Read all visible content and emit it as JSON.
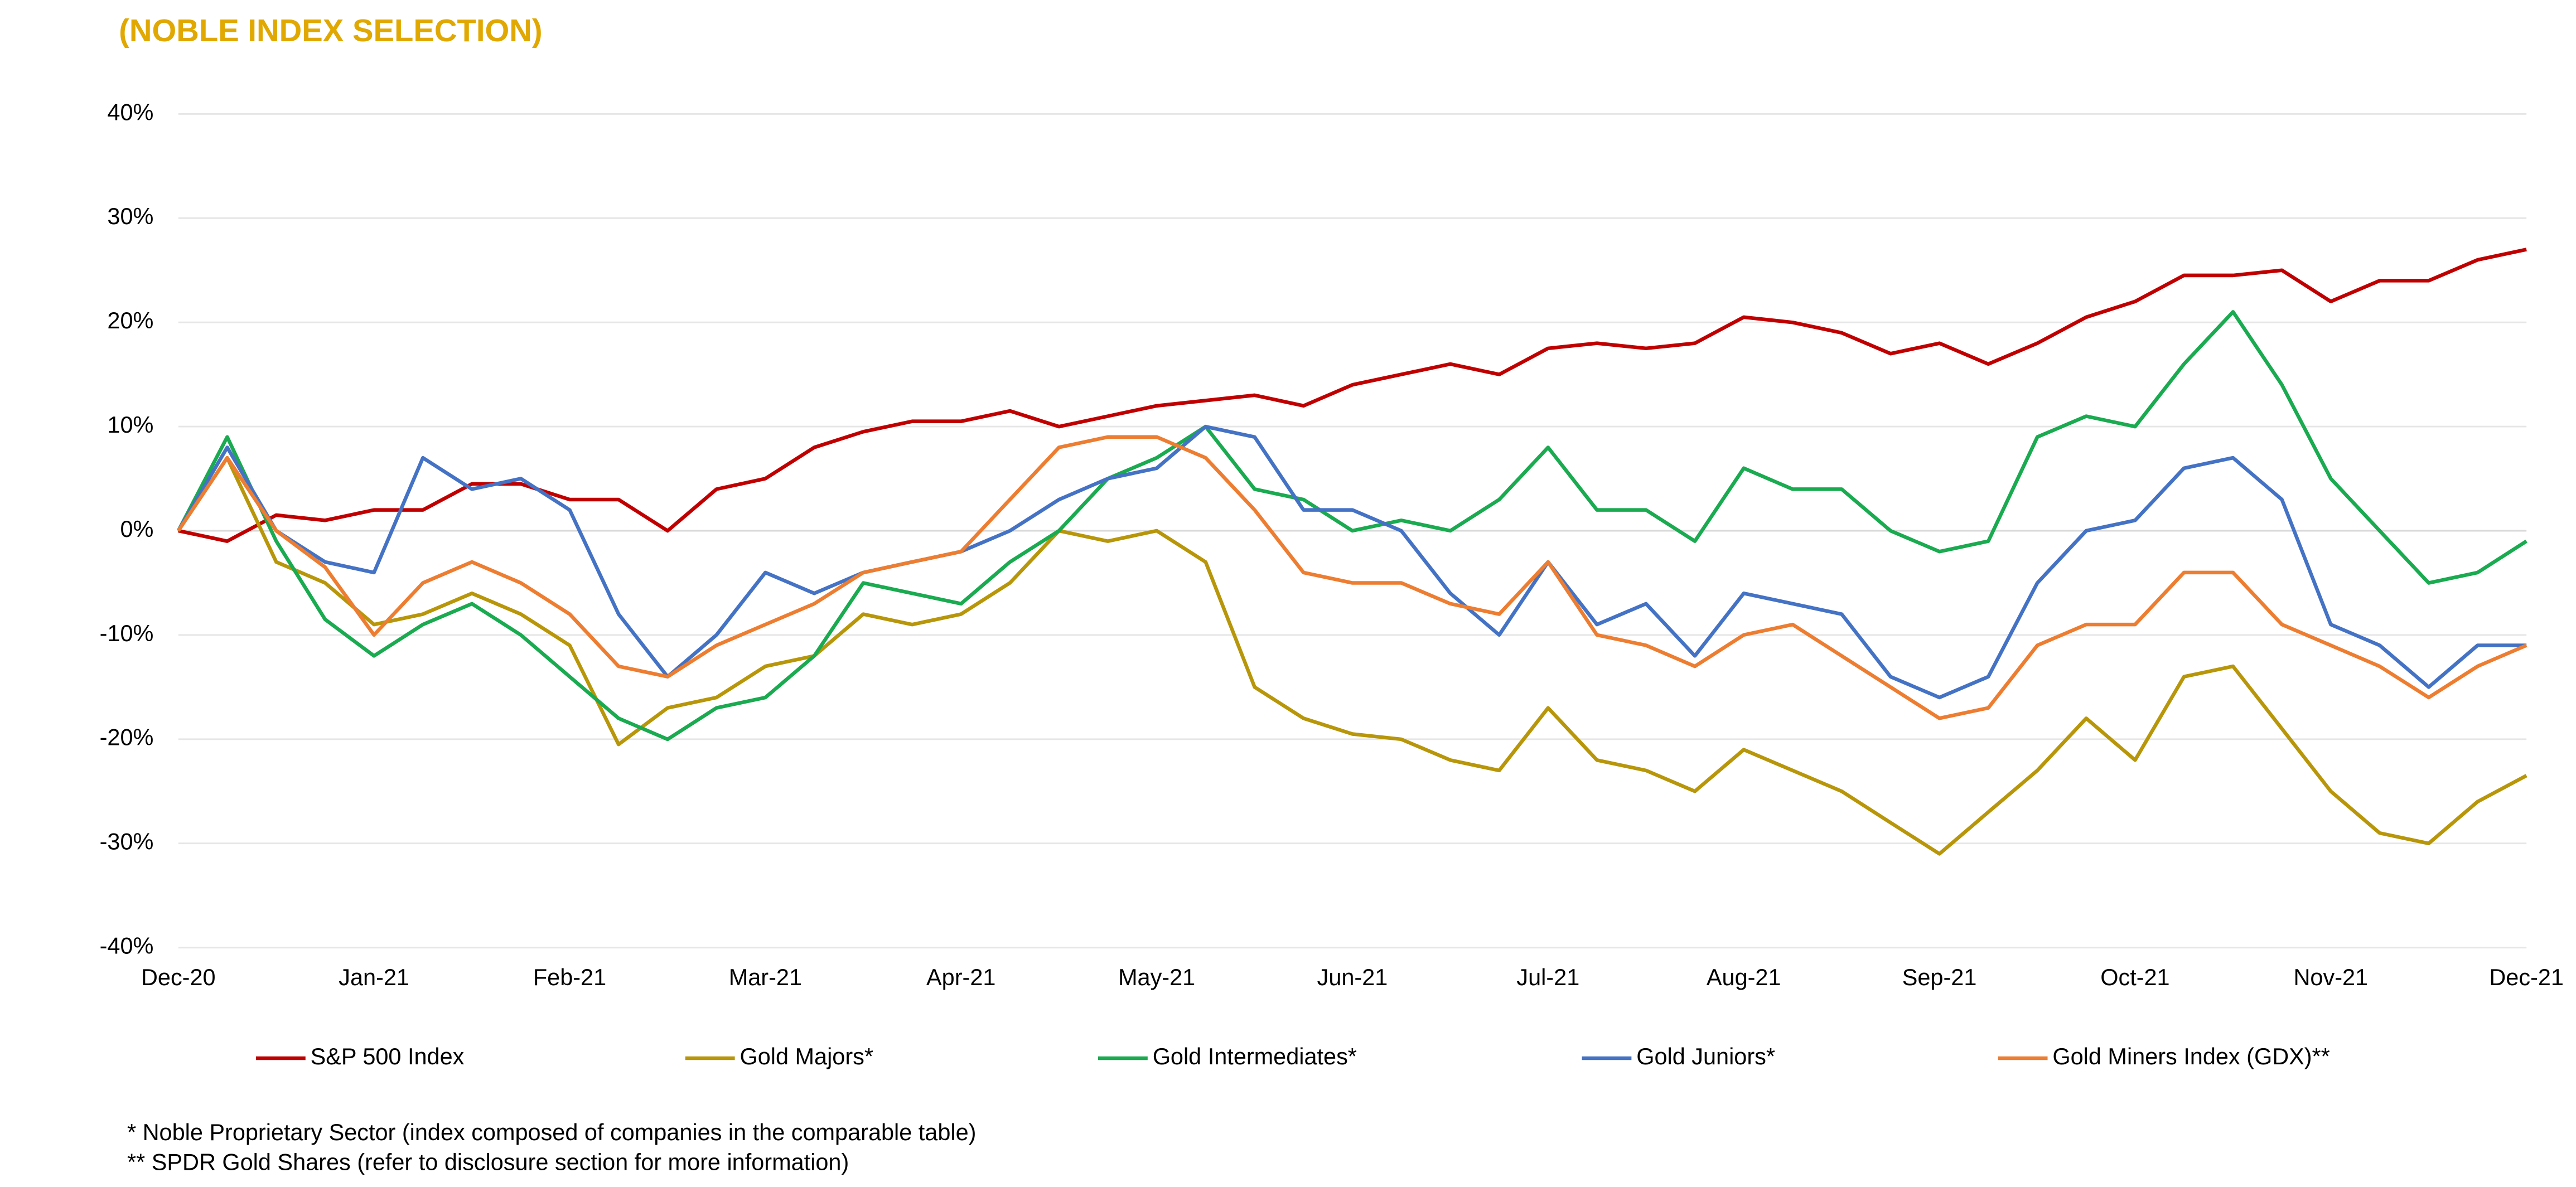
{
  "chart_data": {
    "type": "line",
    "title": "(NOBLE INDEX SELECTION)",
    "categories": [
      "Dec-20",
      null,
      null,
      null,
      "Jan-21",
      null,
      null,
      null,
      "Feb-21",
      null,
      null,
      null,
      "Mar-21",
      null,
      null,
      null,
      "Apr-21",
      null,
      null,
      null,
      "May-21",
      null,
      null,
      null,
      "Jun-21",
      null,
      null,
      null,
      "Jul-21",
      null,
      null,
      null,
      "Aug-21",
      null,
      null,
      null,
      "Sep-21",
      null,
      null,
      null,
      "Oct-21",
      null,
      null,
      null,
      "Nov-21",
      null,
      null,
      null,
      "Dec-21"
    ],
    "series": [
      {
        "name": "S&P 500 Index",
        "color": "#c00000",
        "values": [
          0,
          -1,
          1.5,
          1,
          2,
          2,
          4.5,
          4.5,
          3,
          3,
          0,
          4,
          5,
          8,
          9.5,
          10.5,
          10.5,
          11.5,
          10,
          11,
          12,
          12.5,
          13,
          12,
          14,
          15,
          16,
          15,
          17.5,
          18,
          17.5,
          18,
          20.5,
          20,
          19,
          17,
          18,
          16,
          18,
          20.5,
          22,
          24.5,
          24.5,
          25,
          22,
          24,
          24,
          26,
          27
        ]
      },
      {
        "name": "Gold Majors*",
        "color": "#b8960a",
        "values": [
          0,
          7,
          -3,
          -5,
          -9,
          -8,
          -6,
          -8,
          -11,
          -20.5,
          -17,
          -16,
          -13,
          -12,
          -8,
          -9,
          -8,
          -5,
          0,
          -1,
          0,
          -3,
          -15,
          -18,
          -19.5,
          -20,
          -22,
          -23,
          -17,
          -22,
          -23,
          -25,
          -21,
          -23,
          -25,
          -28,
          -31,
          -27,
          -23,
          -18,
          -22,
          -14,
          -13,
          -19,
          -25,
          -29,
          -30,
          -26,
          -23.5
        ]
      },
      {
        "name": "Gold Intermediates*",
        "color": "#1aaa50",
        "values": [
          0,
          9,
          -1,
          -8.5,
          -12,
          -9,
          -7,
          -10,
          -14,
          -18,
          -20,
          -17,
          -16,
          -12,
          -5,
          -6,
          -7,
          -3,
          0,
          5,
          7,
          10,
          4,
          3,
          0,
          1,
          0,
          3,
          8,
          2,
          2,
          -1,
          6,
          4,
          4,
          0,
          -2,
          -1,
          9,
          11,
          10,
          16,
          21,
          14,
          5,
          0,
          -5,
          -4,
          -1
        ]
      },
      {
        "name": "Gold Juniors*",
        "color": "#4472c4",
        "values": [
          0,
          8,
          0,
          -3,
          -4,
          7,
          4,
          5,
          2,
          -8,
          -14,
          -10,
          -4,
          -6,
          -4,
          -3,
          -2,
          0,
          3,
          5,
          6,
          10,
          9,
          2,
          2,
          0,
          -6,
          -10,
          -3,
          -9,
          -7,
          -12,
          -6,
          -7,
          -8,
          -14,
          -16,
          -14,
          -5,
          0,
          1,
          6,
          7,
          3,
          -9,
          -11,
          -15,
          -11,
          -11
        ]
      },
      {
        "name": "Gold Miners Index (GDX)**",
        "color": "#ed7d31",
        "values": [
          0,
          7,
          0,
          -3.5,
          -10,
          -5,
          -3,
          -5,
          -8,
          -13,
          -14,
          -11,
          -9,
          -7,
          -4,
          -3,
          -2,
          3,
          8,
          9,
          9,
          7,
          2,
          -4,
          -5,
          -5,
          -7,
          -8,
          -3,
          -10,
          -11,
          -13,
          -10,
          -9,
          -12,
          -15,
          -18,
          -17,
          -11,
          -9,
          -9,
          -4,
          -4,
          -9,
          -11,
          -13,
          -16,
          -13,
          -11
        ]
      }
    ],
    "ylim": [
      -40,
      40
    ],
    "yticks": [
      {
        "value": -40,
        "label": "-40%"
      },
      {
        "value": -30,
        "label": "-30%"
      },
      {
        "value": -20,
        "label": "-20%"
      },
      {
        "value": -10,
        "label": "-10%"
      },
      {
        "value": 0,
        "label": "0%"
      },
      {
        "value": 10,
        "label": "10%"
      },
      {
        "value": 20,
        "label": "20%"
      },
      {
        "value": 30,
        "label": "30%"
      },
      {
        "value": 40,
        "label": "40%"
      }
    ],
    "grid": true,
    "legend": "bottom",
    "notes": [
      "* Noble Proprietary Sector (index composed of companies in the comparable table)",
      "** SPDR Gold Shares (refer to disclosure section for more information)"
    ]
  }
}
